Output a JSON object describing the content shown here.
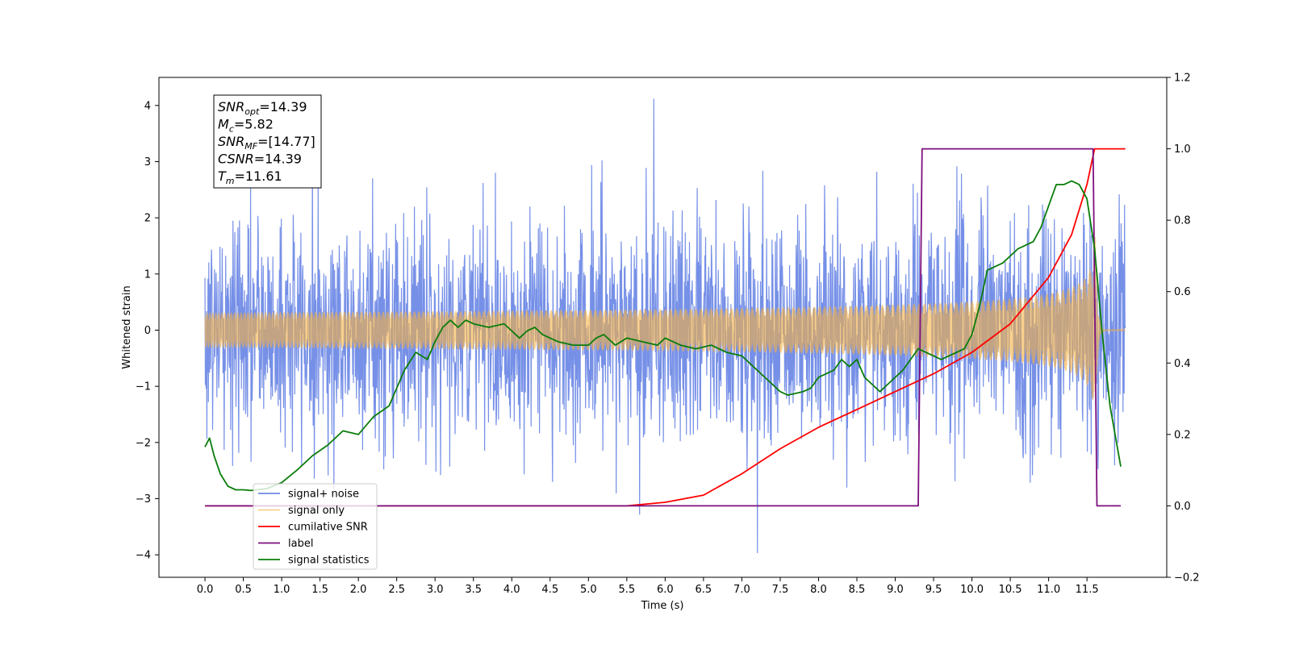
{
  "chart_data": {
    "type": "line",
    "xlabel": "Time (s)",
    "ylabel": "Whitened strain",
    "xlim": [
      -0.6,
      12.54
    ],
    "ylim_left": [
      -4.4,
      4.5
    ],
    "ylim_right": [
      -0.2,
      1.2
    ],
    "x_ticks": [
      "0.0",
      "0.5",
      "1.0",
      "1.5",
      "2.0",
      "2.5",
      "3.0",
      "3.5",
      "4.0",
      "4.5",
      "5.0",
      "5.5",
      "6.0",
      "6.5",
      "7.0",
      "7.5",
      "8.0",
      "8.5",
      "9.0",
      "9.5",
      "10.0",
      "10.5",
      "11.0",
      "11.5"
    ],
    "y_ticks_left": [
      "4",
      "3",
      "2",
      "1",
      "0",
      "−1",
      "−2",
      "−3",
      "−4"
    ],
    "y_ticks_right": [
      "1.2",
      "1.0",
      "0.8",
      "0.6",
      "0.4",
      "0.2",
      "0.0",
      "−0.2"
    ],
    "grid": false,
    "legend_position": "bottom-left",
    "annotation": {
      "lines": [
        {
          "base": "SNR",
          "sub": "opt",
          "value": "=14.39"
        },
        {
          "base": "M",
          "sub": "c",
          "value": "=5.82"
        },
        {
          "base": "SNR",
          "sub": "MF",
          "value": "=[14.77]"
        },
        {
          "base": "CSNR",
          "sub": "",
          "value": "=14.39"
        },
        {
          "base": "T",
          "sub": "m",
          "value": "=11.61"
        }
      ]
    },
    "series": [
      {
        "name": "signal+ noise",
        "color": "#6f8ae6",
        "axis": "left",
        "style": "noise",
        "x_range": [
          0.0,
          12.0
        ],
        "amplitude_sigma": 1.0,
        "max": 4.12,
        "min": -3.97
      },
      {
        "name": "signal only",
        "color": "#f5b041",
        "axis": "left",
        "style": "chirp",
        "x_range": [
          0.0,
          12.0
        ],
        "merger_time": 11.61,
        "peak_amplitude": 1.75
      },
      {
        "name": "cumilative SNR",
        "color": "#ff0000",
        "axis": "right",
        "x": [
          0,
          1,
          2,
          3,
          4,
          5,
          5.5,
          6.0,
          6.5,
          7.0,
          7.5,
          8.0,
          8.5,
          9.0,
          9.5,
          10.0,
          10.5,
          11.0,
          11.3,
          11.5,
          11.6,
          11.62,
          12.0
        ],
        "values": [
          0,
          0,
          0,
          0,
          0,
          0,
          0,
          0.01,
          0.03,
          0.09,
          0.16,
          0.22,
          0.27,
          0.32,
          0.37,
          0.43,
          0.51,
          0.64,
          0.76,
          0.9,
          1.0,
          1.0,
          1.0
        ]
      },
      {
        "name": "label",
        "color": "#7e0f7e",
        "axis": "right",
        "x": [
          0.0,
          9.3,
          9.35,
          11.58,
          11.63,
          11.94
        ],
        "values": [
          0,
          0,
          1,
          1,
          0,
          0
        ]
      },
      {
        "name": "signal statistics",
        "color": "#0a7d0a",
        "axis": "right",
        "x": [
          0.0,
          0.06,
          0.12,
          0.2,
          0.3,
          0.4,
          0.5,
          0.6,
          0.8,
          1.0,
          1.2,
          1.4,
          1.6,
          1.8,
          2.0,
          2.2,
          2.4,
          2.5,
          2.6,
          2.75,
          2.9,
          3.0,
          3.1,
          3.2,
          3.3,
          3.4,
          3.5,
          3.7,
          3.9,
          4.0,
          4.1,
          4.2,
          4.3,
          4.4,
          4.6,
          4.8,
          5.0,
          5.1,
          5.2,
          5.35,
          5.5,
          5.7,
          5.9,
          6.0,
          6.2,
          6.4,
          6.6,
          6.8,
          7.0,
          7.2,
          7.4,
          7.5,
          7.6,
          7.8,
          7.9,
          8.0,
          8.2,
          8.3,
          8.4,
          8.5,
          8.6,
          8.8,
          8.9,
          9.0,
          9.1,
          9.2,
          9.3,
          9.4,
          9.5,
          9.6,
          9.7,
          9.8,
          9.9,
          10.0,
          10.1,
          10.2,
          10.4,
          10.6,
          10.8,
          10.9,
          11.0,
          11.1,
          11.2,
          11.3,
          11.4,
          11.5,
          11.6,
          11.7,
          11.8,
          11.94
        ],
        "values": [
          0.165,
          0.19,
          0.14,
          0.09,
          0.055,
          0.045,
          0.045,
          0.043,
          0.048,
          0.065,
          0.1,
          0.14,
          0.17,
          0.21,
          0.2,
          0.25,
          0.28,
          0.33,
          0.38,
          0.43,
          0.41,
          0.46,
          0.5,
          0.52,
          0.5,
          0.52,
          0.51,
          0.5,
          0.51,
          0.49,
          0.47,
          0.49,
          0.5,
          0.48,
          0.46,
          0.45,
          0.45,
          0.47,
          0.48,
          0.45,
          0.47,
          0.46,
          0.45,
          0.47,
          0.45,
          0.44,
          0.45,
          0.43,
          0.42,
          0.38,
          0.34,
          0.32,
          0.31,
          0.32,
          0.33,
          0.36,
          0.38,
          0.41,
          0.39,
          0.41,
          0.36,
          0.32,
          0.34,
          0.36,
          0.38,
          0.41,
          0.44,
          0.43,
          0.42,
          0.41,
          0.42,
          0.43,
          0.44,
          0.48,
          0.56,
          0.66,
          0.68,
          0.72,
          0.74,
          0.78,
          0.84,
          0.9,
          0.9,
          0.91,
          0.9,
          0.86,
          0.72,
          0.48,
          0.28,
          0.11
        ]
      }
    ]
  }
}
